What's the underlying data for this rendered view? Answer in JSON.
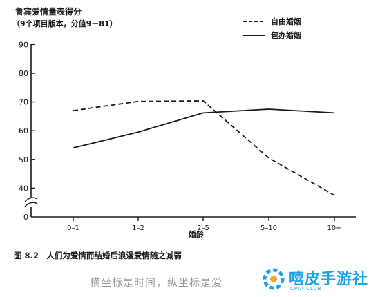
{
  "chart_data": {
    "type": "line",
    "title": "",
    "ylabel": "鲁宾爱情量表得分",
    "ylabel_note": "（9个项目版本，分值9－81）",
    "xlabel": "婚龄",
    "categories": [
      "0–1",
      "1–2",
      "2–5",
      "5–10",
      "10+"
    ],
    "yticks": [
      40,
      50,
      60,
      70,
      80,
      90
    ],
    "ylim": [
      30,
      90
    ],
    "axis_break": true,
    "grid": false,
    "legend_position": "top-right",
    "series": [
      {
        "name": "自由婚姻",
        "style": "dashed",
        "values": [
          67,
          70.2,
          70.4,
          50.5,
          37.5
        ]
      },
      {
        "name": "包办婚姻",
        "style": "solid",
        "values": [
          54,
          59.5,
          66.2,
          67.5,
          66.2
        ]
      }
    ],
    "caption": "图 8.2　人们为爱情而结婚后浪漫爱情随之减弱"
  },
  "overlay": {
    "subtitle": "横坐标是时间，纵坐标是爱",
    "watermark_name": "嘻皮手游社",
    "watermark_sub": "CPIA.CLUB"
  },
  "colors": {
    "ink": "#1a1a1a",
    "watermark": "#1aa3e8",
    "watermark_accent": "#f5a623"
  }
}
